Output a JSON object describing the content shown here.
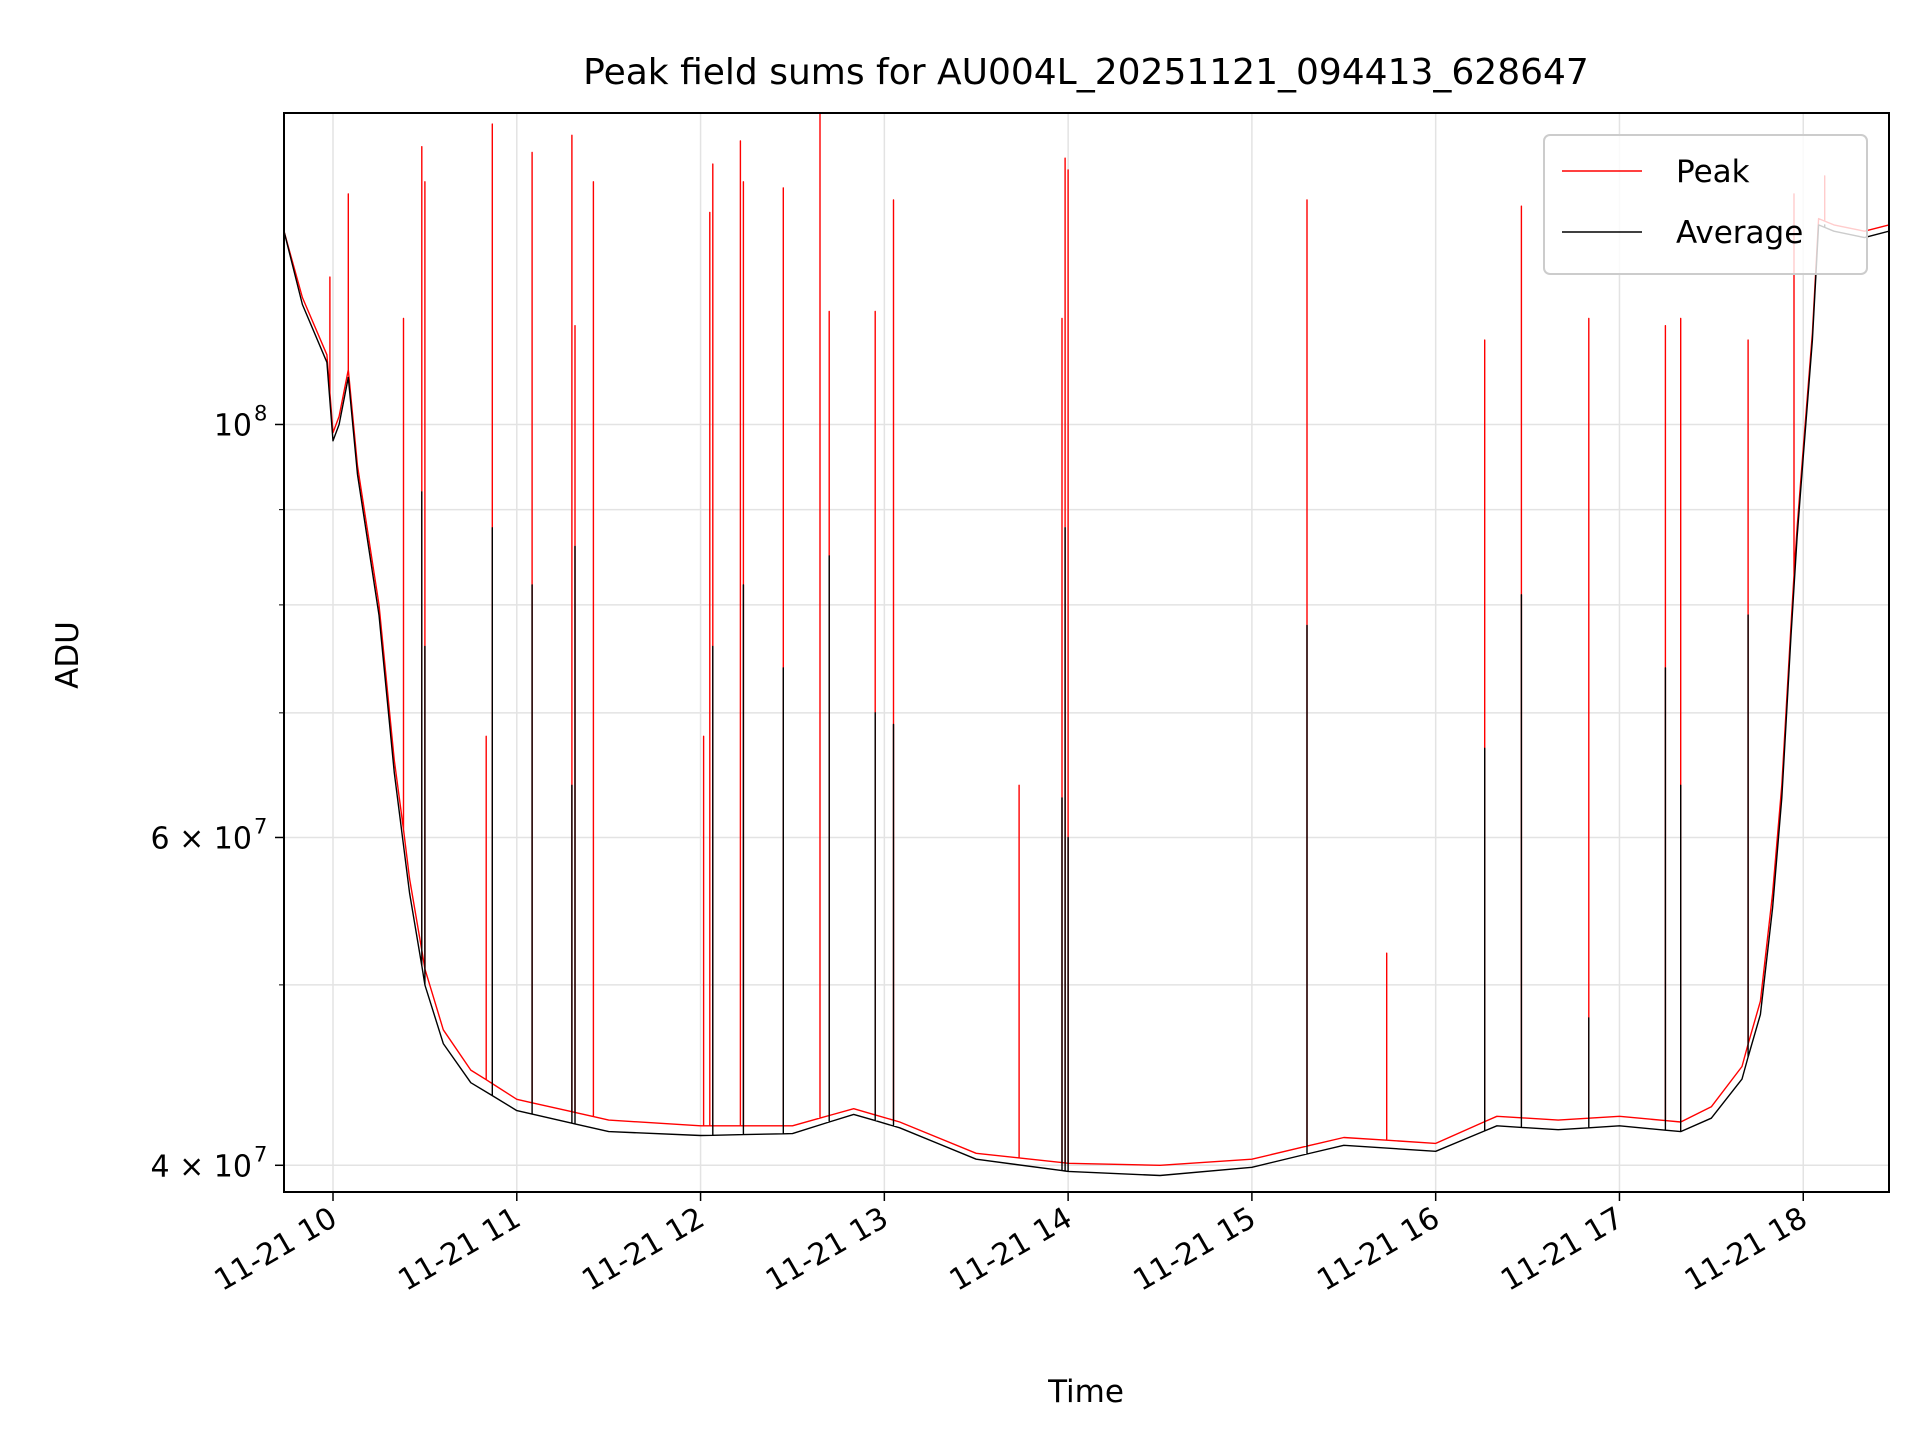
{
  "chart_data": {
    "type": "line",
    "title": "Peak field sums for AU004L_20251121_094413_628647",
    "xlabel": "Time",
    "ylabel": "ADU",
    "yscale": "log",
    "xlim": [
      "2025-11-21 09:44",
      "2025-11-21 18:28"
    ],
    "ylim": [
      38700000,
      147000000
    ],
    "grid": true,
    "legend_position": "top-right",
    "x_ticks": [
      {
        "t": "2025-11-21 10:00",
        "label": "11-21 10"
      },
      {
        "t": "2025-11-21 11:00",
        "label": "11-21 11"
      },
      {
        "t": "2025-11-21 12:00",
        "label": "11-21 12"
      },
      {
        "t": "2025-11-21 13:00",
        "label": "11-21 13"
      },
      {
        "t": "2025-11-21 14:00",
        "label": "11-21 14"
      },
      {
        "t": "2025-11-21 15:00",
        "label": "11-21 15"
      },
      {
        "t": "2025-11-21 16:00",
        "label": "11-21 16"
      },
      {
        "t": "2025-11-21 17:00",
        "label": "11-21 17"
      },
      {
        "t": "2025-11-21 18:00",
        "label": "11-21 18"
      }
    ],
    "y_ticks_major": [
      {
        "value": 100000000,
        "base": "10",
        "exp": "8"
      },
      {
        "value": 60000000,
        "base": "6 × 10",
        "exp": "7"
      },
      {
        "value": 40000000,
        "base": "4 × 10",
        "exp": "7"
      }
    ],
    "y_ticks_minor": [
      50000000,
      70000000,
      80000000,
      90000000
    ],
    "colors": {
      "peak": "#ff0000",
      "average": "#000000",
      "grid": "#e3e3e3"
    },
    "series": [
      {
        "name": "Peak",
        "color": "#ff0000",
        "baseline": [
          [
            "2025-11-21 09:44",
            127000000
          ],
          [
            "2025-11-21 09:50",
            117000000
          ],
          [
            "2025-11-21 09:58",
            109000000
          ],
          [
            "2025-11-21 10:00",
            99000000
          ],
          [
            "2025-11-21 10:02",
            101000000
          ],
          [
            "2025-11-21 10:05",
            107000000
          ],
          [
            "2025-11-21 10:08",
            95000000
          ],
          [
            "2025-11-21 10:15",
            80000000
          ],
          [
            "2025-11-21 10:20",
            66000000
          ],
          [
            "2025-11-21 10:25",
            57000000
          ],
          [
            "2025-11-21 10:30",
            51000000
          ],
          [
            "2025-11-21 10:36",
            47300000
          ],
          [
            "2025-11-21 10:45",
            45000000
          ],
          [
            "2025-11-21 11:00",
            43400000
          ],
          [
            "2025-11-21 11:30",
            42300000
          ],
          [
            "2025-11-21 12:00",
            42000000
          ],
          [
            "2025-11-21 12:30",
            42000000
          ],
          [
            "2025-11-21 12:50",
            42900000
          ],
          [
            "2025-11-21 13:05",
            42200000
          ],
          [
            "2025-11-21 13:30",
            40600000
          ],
          [
            "2025-11-21 14:00",
            40100000
          ],
          [
            "2025-11-21 14:30",
            40000000
          ],
          [
            "2025-11-21 15:00",
            40300000
          ],
          [
            "2025-11-21 15:30",
            41400000
          ],
          [
            "2025-11-21 16:00",
            41100000
          ],
          [
            "2025-11-21 16:20",
            42500000
          ],
          [
            "2025-11-21 16:40",
            42300000
          ],
          [
            "2025-11-21 17:00",
            42500000
          ],
          [
            "2025-11-21 17:20",
            42200000
          ],
          [
            "2025-11-21 17:30",
            43000000
          ],
          [
            "2025-11-21 17:40",
            45200000
          ],
          [
            "2025-11-21 17:46",
            49000000
          ],
          [
            "2025-11-21 17:50",
            56000000
          ],
          [
            "2025-11-21 17:53",
            64000000
          ],
          [
            "2025-11-21 17:56",
            78000000
          ],
          [
            "2025-11-21 17:58",
            88000000
          ],
          [
            "2025-11-21 18:00",
            97000000
          ],
          [
            "2025-11-21 18:03",
            112000000
          ],
          [
            "2025-11-21 18:05",
            129000000
          ],
          [
            "2025-11-21 18:10",
            128000000
          ],
          [
            "2025-11-21 18:20",
            127000000
          ],
          [
            "2025-11-21 18:28",
            128000000
          ]
        ],
        "spikes": [
          [
            "2025-11-21 09:59",
            120000000
          ],
          [
            "2025-11-21 10:05",
            133000000
          ],
          [
            "2025-11-21 10:23",
            114000000
          ],
          [
            "2025-11-21 10:29",
            141000000
          ],
          [
            "2025-11-21 10:30",
            135000000
          ],
          [
            "2025-11-21 10:50",
            68000000
          ],
          [
            "2025-11-21 10:52",
            145000000
          ],
          [
            "2025-11-21 11:05",
            140000000
          ],
          [
            "2025-11-21 11:18",
            143000000
          ],
          [
            "2025-11-21 11:19",
            113000000
          ],
          [
            "2025-11-21 11:25",
            135000000
          ],
          [
            "2025-11-21 12:01",
            68000000
          ],
          [
            "2025-11-21 12:03",
            130000000
          ],
          [
            "2025-11-21 12:04",
            138000000
          ],
          [
            "2025-11-21 12:13",
            142000000
          ],
          [
            "2025-11-21 12:14",
            135000000
          ],
          [
            "2025-11-21 12:27",
            134000000
          ],
          [
            "2025-11-21 12:39",
            147000000
          ],
          [
            "2025-11-21 12:42",
            115000000
          ],
          [
            "2025-11-21 12:57",
            115000000
          ],
          [
            "2025-11-21 13:03",
            132000000
          ],
          [
            "2025-11-21 13:44",
            64000000
          ],
          [
            "2025-11-21 13:58",
            114000000
          ],
          [
            "2025-11-21 13:59",
            139000000
          ],
          [
            "2025-11-21 14:00",
            137000000
          ],
          [
            "2025-11-21 15:18",
            132000000
          ],
          [
            "2025-11-21 15:44",
            52000000
          ],
          [
            "2025-11-21 16:16",
            111000000
          ],
          [
            "2025-11-21 16:28",
            131000000
          ],
          [
            "2025-11-21 16:50",
            114000000
          ],
          [
            "2025-11-21 17:15",
            113000000
          ],
          [
            "2025-11-21 17:20",
            114000000
          ],
          [
            "2025-11-21 17:42",
            111000000
          ],
          [
            "2025-11-21 17:57",
            133000000
          ],
          [
            "2025-11-21 18:07",
            136000000
          ]
        ]
      },
      {
        "name": "Average",
        "color": "#000000",
        "baseline": [
          [
            "2025-11-21 09:44",
            127000000
          ],
          [
            "2025-11-21 09:50",
            116000000
          ],
          [
            "2025-11-21 09:58",
            108000000
          ],
          [
            "2025-11-21 10:00",
            98000000
          ],
          [
            "2025-11-21 10:02",
            100000000
          ],
          [
            "2025-11-21 10:05",
            106000000
          ],
          [
            "2025-11-21 10:08",
            94000000
          ],
          [
            "2025-11-21 10:15",
            79000000
          ],
          [
            "2025-11-21 10:20",
            65000000
          ],
          [
            "2025-11-21 10:25",
            56000000
          ],
          [
            "2025-11-21 10:30",
            50000000
          ],
          [
            "2025-11-21 10:36",
            46500000
          ],
          [
            "2025-11-21 10:45",
            44300000
          ],
          [
            "2025-11-21 11:00",
            42800000
          ],
          [
            "2025-11-21 11:30",
            41700000
          ],
          [
            "2025-11-21 12:00",
            41500000
          ],
          [
            "2025-11-21 12:30",
            41600000
          ],
          [
            "2025-11-21 12:50",
            42600000
          ],
          [
            "2025-11-21 13:05",
            41900000
          ],
          [
            "2025-11-21 13:30",
            40300000
          ],
          [
            "2025-11-21 14:00",
            39700000
          ],
          [
            "2025-11-21 14:30",
            39500000
          ],
          [
            "2025-11-21 15:00",
            39900000
          ],
          [
            "2025-11-21 15:30",
            41000000
          ],
          [
            "2025-11-21 16:00",
            40700000
          ],
          [
            "2025-11-21 16:20",
            42000000
          ],
          [
            "2025-11-21 16:40",
            41800000
          ],
          [
            "2025-11-21 17:00",
            42000000
          ],
          [
            "2025-11-21 17:20",
            41700000
          ],
          [
            "2025-11-21 17:30",
            42400000
          ],
          [
            "2025-11-21 17:40",
            44500000
          ],
          [
            "2025-11-21 17:46",
            48200000
          ],
          [
            "2025-11-21 17:50",
            55000000
          ],
          [
            "2025-11-21 17:53",
            63000000
          ],
          [
            "2025-11-21 17:56",
            77000000
          ],
          [
            "2025-11-21 17:58",
            87000000
          ],
          [
            "2025-11-21 18:00",
            96000000
          ],
          [
            "2025-11-21 18:03",
            111000000
          ],
          [
            "2025-11-21 18:05",
            128000000
          ],
          [
            "2025-11-21 18:10",
            127000000
          ],
          [
            "2025-11-21 18:20",
            126000000
          ],
          [
            "2025-11-21 18:28",
            127000000
          ]
        ],
        "spikes": [
          [
            "2025-11-21 10:29",
            92000000
          ],
          [
            "2025-11-21 10:30",
            76000000
          ],
          [
            "2025-11-21 10:52",
            88000000
          ],
          [
            "2025-11-21 11:05",
            82000000
          ],
          [
            "2025-11-21 11:18",
            64000000
          ],
          [
            "2025-11-21 11:19",
            86000000
          ],
          [
            "2025-11-21 12:04",
            76000000
          ],
          [
            "2025-11-21 12:14",
            82000000
          ],
          [
            "2025-11-21 12:27",
            74000000
          ],
          [
            "2025-11-21 12:42",
            85000000
          ],
          [
            "2025-11-21 12:57",
            70000000
          ],
          [
            "2025-11-21 13:03",
            69000000
          ],
          [
            "2025-11-21 13:58",
            63000000
          ],
          [
            "2025-11-21 13:59",
            88000000
          ],
          [
            "2025-11-21 14:00",
            60000000
          ],
          [
            "2025-11-21 15:18",
            78000000
          ],
          [
            "2025-11-21 16:16",
            67000000
          ],
          [
            "2025-11-21 16:28",
            81000000
          ],
          [
            "2025-11-21 16:50",
            48000000
          ],
          [
            "2025-11-21 17:15",
            74000000
          ],
          [
            "2025-11-21 17:20",
            64000000
          ],
          [
            "2025-11-21 17:42",
            79000000
          ],
          [
            "2025-11-21 18:07",
            128000000
          ]
        ]
      }
    ]
  }
}
